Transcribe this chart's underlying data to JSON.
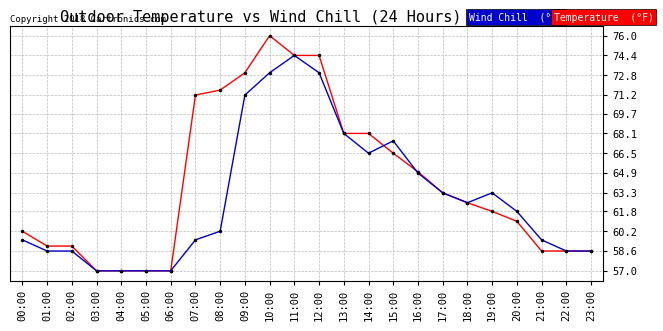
{
  "title": "Outdoor Temperature vs Wind Chill (24 Hours)  20180607",
  "copyright": "Copyright 2018 Cartronics.com",
  "x_labels": [
    "00:00",
    "01:00",
    "02:00",
    "03:00",
    "04:00",
    "05:00",
    "06:00",
    "07:00",
    "08:00",
    "09:00",
    "10:00",
    "11:00",
    "12:00",
    "13:00",
    "14:00",
    "15:00",
    "16:00",
    "17:00",
    "18:00",
    "19:00",
    "20:00",
    "21:00",
    "22:00",
    "23:00"
  ],
  "y_ticks": [
    57.0,
    58.6,
    60.2,
    61.8,
    63.3,
    64.9,
    66.5,
    68.1,
    69.7,
    71.2,
    72.8,
    74.4,
    76.0
  ],
  "ylim": [
    56.2,
    76.8
  ],
  "temperature": [
    60.2,
    59.0,
    59.0,
    57.0,
    57.0,
    57.0,
    57.0,
    71.2,
    71.6,
    73.0,
    76.0,
    74.4,
    74.4,
    68.1,
    68.1,
    66.5,
    65.0,
    63.3,
    62.5,
    61.8,
    61.0,
    58.6,
    58.6,
    58.6
  ],
  "wind_chill": [
    59.5,
    58.6,
    58.6,
    57.0,
    57.0,
    57.0,
    57.0,
    59.5,
    60.2,
    71.2,
    73.0,
    74.4,
    73.0,
    68.1,
    66.5,
    67.5,
    64.9,
    63.3,
    62.5,
    63.3,
    61.8,
    59.5,
    58.6,
    58.6
  ],
  "temp_color": "#ff0000",
  "wind_color": "#0000cc",
  "background_color": "#ffffff",
  "grid_color": "#bbbbbb",
  "title_fontsize": 11,
  "tick_fontsize": 7.5,
  "legend_wind_label": "Wind Chill  (°F)",
  "legend_temp_label": "Temperature  (°F)"
}
